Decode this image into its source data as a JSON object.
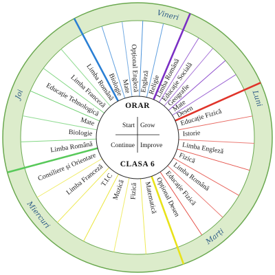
{
  "center": {
    "title": "ORAR",
    "class_label": "CLASA 6",
    "quadrants": [
      "Start",
      "Grow",
      "Continue",
      "Improve"
    ]
  },
  "days": [
    {
      "name": "Luni",
      "color": "#e0342a",
      "subjects": [
        "Educație Fizică",
        "Istorie",
        "Limba Engleză",
        "Fizică",
        "Limba Română",
        "Educație Fizică",
        "Opțional Desen"
      ]
    },
    {
      "name": "Marți",
      "color": "#e8e21a",
      "subjects": [
        "Matematică",
        "Fizică",
        "Muzică",
        "T.I.C",
        "Limba Franceză",
        "Consiliere și Orientare"
      ]
    },
    {
      "name": "Miercuri",
      "color": "#58c95a",
      "subjects": [
        "Limba Română",
        "Biologie",
        "Mate",
        "Educație Tehnologică",
        "Limba Franceză",
        "Limba Română"
      ]
    },
    {
      "name": "Joi",
      "color": "#2a7fd4",
      "subjects": [
        "Biologie",
        "Mate",
        "Opțional Engleză",
        "Engleză",
        "Religie"
      ]
    },
    {
      "name": "Vineri",
      "color": "#7a2fc4",
      "subjects": [
        "Limba Română",
        "Educație Socială",
        "Geografie",
        "Mate",
        "Desen"
      ]
    }
  ]
}
